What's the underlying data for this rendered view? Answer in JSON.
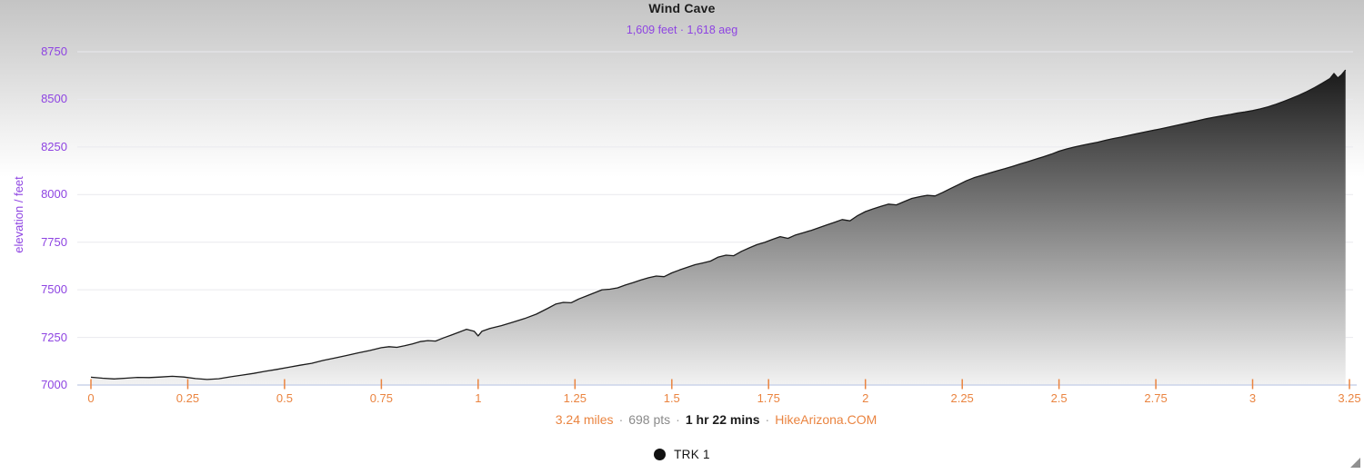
{
  "header": {
    "title": "Wind Cave",
    "subtitle": "1,609 feet · 1,618 aeg"
  },
  "footer": {
    "distance": "3.24 miles",
    "points": "698 pts",
    "duration": "1 hr 22 mins",
    "brand": "HikeArizona.COM",
    "separator": "·"
  },
  "legend": {
    "label": "TRK 1",
    "marker_color": "#111111"
  },
  "colors": {
    "purple": "#8e44e2",
    "orange": "#ea8440",
    "axis_line": "#ccd3ea",
    "gridline": "#e9e9ee",
    "line": "#1a1a1a",
    "fill_top": "#0d0d0d",
    "fill_bottom": "#f2f2f2"
  },
  "chart_data": {
    "type": "area",
    "title": "Wind Cave",
    "subtitle": "1,609 feet · 1,618 aeg",
    "ylabel": "elevation / feet",
    "xlabel": "",
    "x_unit": "miles",
    "xlim": [
      0,
      3.25
    ],
    "ylim": [
      7000,
      8750
    ],
    "grid": "horizontal",
    "legend_position": "bottom",
    "x_ticks": [
      0,
      0.25,
      0.5,
      0.75,
      1,
      1.25,
      1.5,
      1.75,
      2,
      2.25,
      2.5,
      2.75,
      3,
      3.25
    ],
    "x_tick_labels": [
      "0",
      "0.25",
      "0.5",
      "0.75",
      "1",
      "1.25",
      "1.5",
      "1.75",
      "2",
      "2.25",
      "2.5",
      "2.75",
      "3",
      "3.25"
    ],
    "y_ticks": [
      7000,
      7250,
      7500,
      7750,
      8000,
      8250,
      8500,
      8750
    ],
    "y_tick_labels": [
      "7000",
      "7250",
      "7500",
      "7750",
      "8000",
      "8250",
      "8500",
      "8750"
    ],
    "total_distance_miles": 3.24,
    "total_points": 698,
    "duration": "1 hr 22 mins",
    "elevation_gain_feet": 1609,
    "accumulated_elevation_gain_feet": 1618,
    "source": "HikeArizona.COM",
    "series": [
      {
        "name": "TRK 1",
        "line_color": "#1a1a1a",
        "fill": "vertical-gray-gradient",
        "points": [
          [
            0.0,
            7041
          ],
          [
            0.03,
            7036
          ],
          [
            0.06,
            7032
          ],
          [
            0.09,
            7036
          ],
          [
            0.12,
            7040
          ],
          [
            0.15,
            7039
          ],
          [
            0.18,
            7042
          ],
          [
            0.21,
            7046
          ],
          [
            0.24,
            7042
          ],
          [
            0.27,
            7034
          ],
          [
            0.3,
            7029
          ],
          [
            0.33,
            7033
          ],
          [
            0.36,
            7043
          ],
          [
            0.39,
            7052
          ],
          [
            0.42,
            7061
          ],
          [
            0.45,
            7072
          ],
          [
            0.48,
            7082
          ],
          [
            0.51,
            7093
          ],
          [
            0.54,
            7104
          ],
          [
            0.57,
            7114
          ],
          [
            0.6,
            7129
          ],
          [
            0.63,
            7142
          ],
          [
            0.66,
            7155
          ],
          [
            0.69,
            7169
          ],
          [
            0.72,
            7181
          ],
          [
            0.75,
            7196
          ],
          [
            0.77,
            7201
          ],
          [
            0.79,
            7198
          ],
          [
            0.81,
            7206
          ],
          [
            0.83,
            7216
          ],
          [
            0.85,
            7228
          ],
          [
            0.87,
            7233
          ],
          [
            0.89,
            7231
          ],
          [
            0.91,
            7247
          ],
          [
            0.93,
            7262
          ],
          [
            0.95,
            7277
          ],
          [
            0.97,
            7293
          ],
          [
            0.99,
            7282
          ],
          [
            1.0,
            7258
          ],
          [
            1.01,
            7283
          ],
          [
            1.03,
            7297
          ],
          [
            1.06,
            7312
          ],
          [
            1.09,
            7330
          ],
          [
            1.12,
            7349
          ],
          [
            1.15,
            7372
          ],
          [
            1.18,
            7403
          ],
          [
            1.2,
            7425
          ],
          [
            1.22,
            7434
          ],
          [
            1.24,
            7432
          ],
          [
            1.26,
            7452
          ],
          [
            1.28,
            7468
          ],
          [
            1.3,
            7484
          ],
          [
            1.32,
            7500
          ],
          [
            1.34,
            7503
          ],
          [
            1.36,
            7510
          ],
          [
            1.38,
            7525
          ],
          [
            1.4,
            7538
          ],
          [
            1.42,
            7551
          ],
          [
            1.44,
            7563
          ],
          [
            1.46,
            7572
          ],
          [
            1.48,
            7569
          ],
          [
            1.5,
            7589
          ],
          [
            1.52,
            7604
          ],
          [
            1.54,
            7618
          ],
          [
            1.56,
            7632
          ],
          [
            1.58,
            7641
          ],
          [
            1.6,
            7651
          ],
          [
            1.62,
            7672
          ],
          [
            1.64,
            7682
          ],
          [
            1.66,
            7679
          ],
          [
            1.68,
            7702
          ],
          [
            1.7,
            7720
          ],
          [
            1.72,
            7737
          ],
          [
            1.74,
            7749
          ],
          [
            1.76,
            7765
          ],
          [
            1.78,
            7779
          ],
          [
            1.8,
            7770
          ],
          [
            1.82,
            7788
          ],
          [
            1.84,
            7800
          ],
          [
            1.86,
            7812
          ],
          [
            1.88,
            7826
          ],
          [
            1.9,
            7840
          ],
          [
            1.92,
            7854
          ],
          [
            1.94,
            7869
          ],
          [
            1.96,
            7862
          ],
          [
            1.98,
            7890
          ],
          [
            2.0,
            7911
          ],
          [
            2.02,
            7925
          ],
          [
            2.04,
            7938
          ],
          [
            2.06,
            7950
          ],
          [
            2.08,
            7946
          ],
          [
            2.1,
            7963
          ],
          [
            2.12,
            7980
          ],
          [
            2.14,
            7989
          ],
          [
            2.16,
            7996
          ],
          [
            2.18,
            7993
          ],
          [
            2.2,
            8012
          ],
          [
            2.22,
            8032
          ],
          [
            2.24,
            8052
          ],
          [
            2.26,
            8072
          ],
          [
            2.28,
            8088
          ],
          [
            2.3,
            8100
          ],
          [
            2.32,
            8113
          ],
          [
            2.34,
            8125
          ],
          [
            2.36,
            8136
          ],
          [
            2.38,
            8148
          ],
          [
            2.4,
            8161
          ],
          [
            2.42,
            8173
          ],
          [
            2.44,
            8186
          ],
          [
            2.46,
            8199
          ],
          [
            2.48,
            8212
          ],
          [
            2.5,
            8228
          ],
          [
            2.52,
            8240
          ],
          [
            2.54,
            8250
          ],
          [
            2.56,
            8259
          ],
          [
            2.58,
            8267
          ],
          [
            2.6,
            8275
          ],
          [
            2.62,
            8285
          ],
          [
            2.64,
            8294
          ],
          [
            2.66,
            8302
          ],
          [
            2.68,
            8311
          ],
          [
            2.7,
            8320
          ],
          [
            2.72,
            8328
          ],
          [
            2.74,
            8336
          ],
          [
            2.76,
            8344
          ],
          [
            2.78,
            8353
          ],
          [
            2.8,
            8362
          ],
          [
            2.82,
            8371
          ],
          [
            2.84,
            8380
          ],
          [
            2.86,
            8389
          ],
          [
            2.88,
            8398
          ],
          [
            2.9,
            8406
          ],
          [
            2.92,
            8413
          ],
          [
            2.94,
            8420
          ],
          [
            2.96,
            8428
          ],
          [
            2.98,
            8434
          ],
          [
            3.0,
            8441
          ],
          [
            3.02,
            8450
          ],
          [
            3.04,
            8461
          ],
          [
            3.06,
            8474
          ],
          [
            3.08,
            8489
          ],
          [
            3.1,
            8505
          ],
          [
            3.12,
            8522
          ],
          [
            3.14,
            8541
          ],
          [
            3.16,
            8562
          ],
          [
            3.18,
            8585
          ],
          [
            3.2,
            8610
          ],
          [
            3.21,
            8636
          ],
          [
            3.22,
            8612
          ],
          [
            3.23,
            8630
          ],
          [
            3.24,
            8654
          ]
        ]
      }
    ]
  }
}
